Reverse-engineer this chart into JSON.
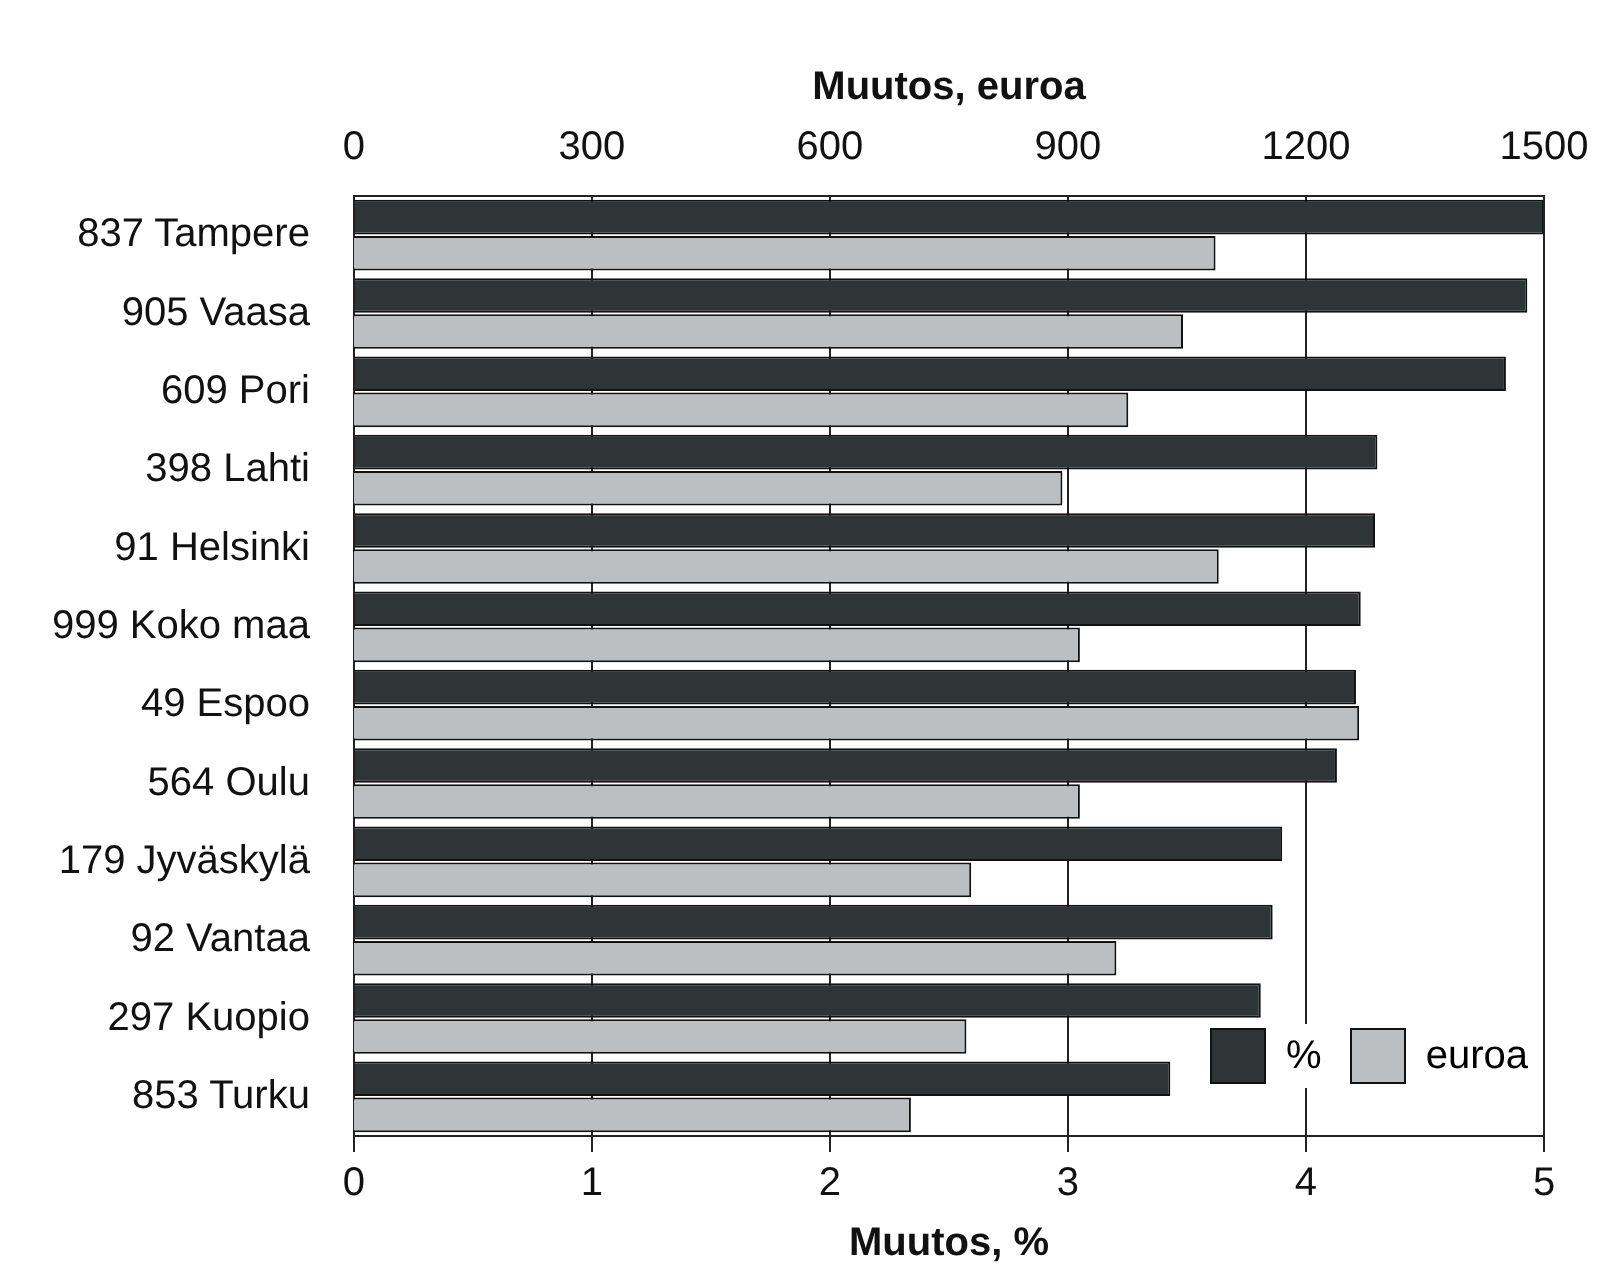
{
  "chart_data": {
    "type": "bar",
    "orientation": "horizontal",
    "xlabel": "Muutos, %",
    "x2label": "Muutos, euroa",
    "categories": [
      "837 Tampere",
      "905 Vaasa",
      "609 Pori",
      "398 Lahti",
      "91 Helsinki",
      "999 Koko maa",
      "49 Espoo",
      "564 Oulu",
      "179 Jyväskylä",
      "92 Vantaa",
      "297 Kuopio",
      "853 Turku"
    ],
    "series": [
      {
        "name": "%",
        "color": "#2f3437",
        "values": [
          5.0,
          4.93,
          4.84,
          4.3,
          4.29,
          4.23,
          4.21,
          4.13,
          3.9,
          3.86,
          3.81,
          3.43
        ]
      },
      {
        "name": "euroa",
        "color": "#bbbfc1",
        "axis": "x2",
        "values": [
          1086,
          1045,
          976,
          893,
          1090,
          915,
          1267,
          915,
          778,
          961,
          772,
          702
        ]
      }
    ],
    "xlim": [
      0,
      5
    ],
    "xticks": [
      0,
      1,
      2,
      3,
      4,
      5
    ],
    "x2lim": [
      0,
      1500
    ],
    "x2ticks": [
      0,
      300,
      600,
      900,
      1200,
      1500
    ],
    "grid": "x",
    "legend": "bottom right"
  }
}
